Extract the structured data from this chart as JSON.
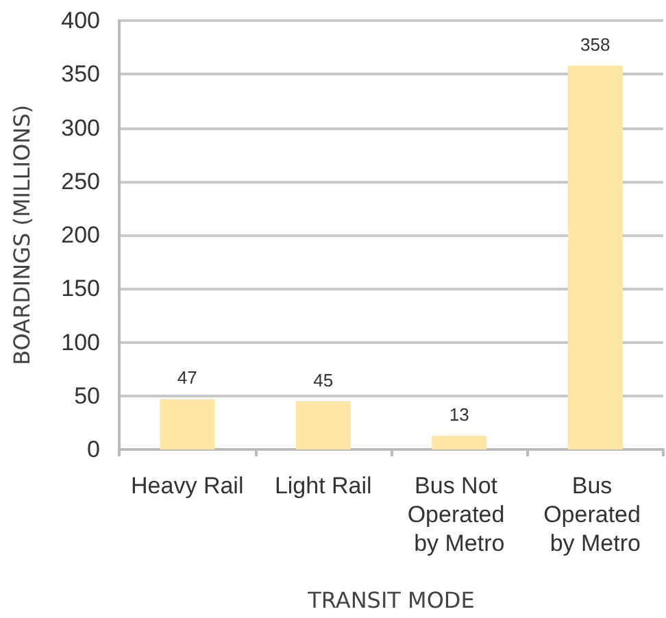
{
  "chart_data": {
    "type": "bar",
    "xlabel": "TRANSIT MODE",
    "ylabel": "BOARDINGS (MILLIONS)",
    "categories": [
      "Heavy Rail",
      "Light Rail",
      "Bus Not Operated by Metro",
      "Bus Operated by Metro"
    ],
    "values": [
      47,
      45,
      13,
      358
    ],
    "color": "#fde7a3",
    "ylim": [
      0,
      400
    ],
    "yticks": [
      0,
      50,
      100,
      150,
      200,
      250,
      300,
      350,
      400
    ],
    "grid": "y",
    "data_labels": true
  }
}
